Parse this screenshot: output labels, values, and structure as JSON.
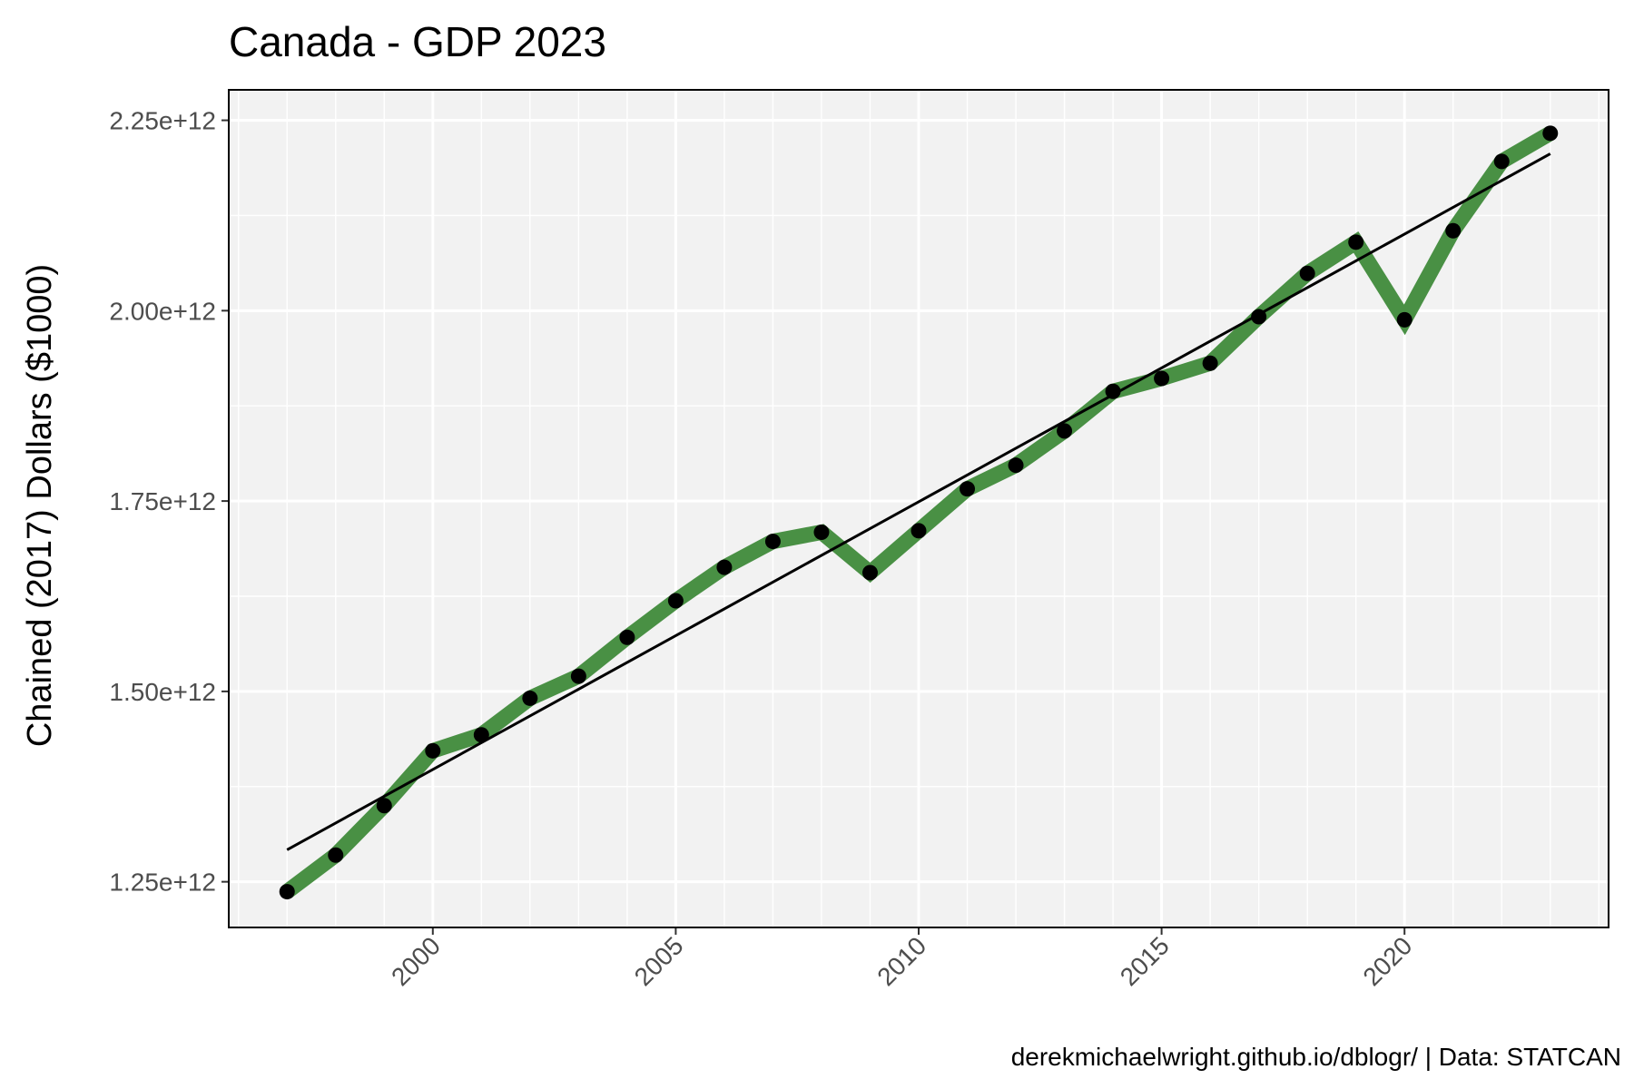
{
  "chart_data": {
    "type": "line",
    "title": "Canada - GDP 2023",
    "subtitle": "",
    "xlabel": "",
    "ylabel": "Chained (2017) Dollars ($1000)",
    "caption": "derekmichaelwright.github.io/dblogr/ | Data: STATCAN",
    "xlim": [
      1995.8,
      2024.2
    ],
    "ylim": [
      1190000000000.0,
      2290000000000.0
    ],
    "x_ticks": [
      2000,
      2005,
      2010,
      2015,
      2020
    ],
    "x_tick_labels": [
      "2000",
      "2005",
      "2010",
      "2015",
      "2020"
    ],
    "y_ticks": [
      1250000000000.0,
      1500000000000.0,
      1750000000000.0,
      2000000000000.0,
      2250000000000.0
    ],
    "y_tick_labels": [
      "1.25e+12",
      "1.50e+12",
      "1.75e+12",
      "2.00e+12",
      "2.25e+12"
    ],
    "grid": true,
    "legend": "none",
    "colors": {
      "series": "#3f8a3a",
      "points": "#000000",
      "trend": "#000000",
      "panel": "#f2f2f2",
      "grid": "#ffffff"
    },
    "series": [
      {
        "x": [
          1997,
          1998,
          1999,
          2000,
          2001,
          2002,
          2003,
          2004,
          2005,
          2006,
          2007,
          2008,
          2009,
          2010,
          2011,
          2012,
          2013,
          2014,
          2015,
          2016,
          2017,
          2018,
          2019,
          2020,
          2021,
          2022,
          2023
        ],
        "y": [
          1237000000000.0,
          1285000000000.0,
          1350000000000.0,
          1422000000000.0,
          1443000000000.0,
          1491000000000.0,
          1520000000000.0,
          1571000000000.0,
          1619000000000.0,
          1663000000000.0,
          1697000000000.0,
          1709000000000.0,
          1656000000000.0,
          1711000000000.0,
          1766000000000.0,
          1797000000000.0,
          1842000000000.0,
          1894000000000.0,
          1911000000000.0,
          1931000000000.0,
          1992000000000.0,
          2049000000000.0,
          2090000000000.0,
          1988000000000.0,
          2105000000000.0,
          2196000000000.0,
          2233000000000.0
        ]
      }
    ],
    "trend_line": {
      "x": [
        1997,
        2023
      ],
      "y": [
        1292000000000.0,
        2206000000000.0
      ]
    }
  }
}
